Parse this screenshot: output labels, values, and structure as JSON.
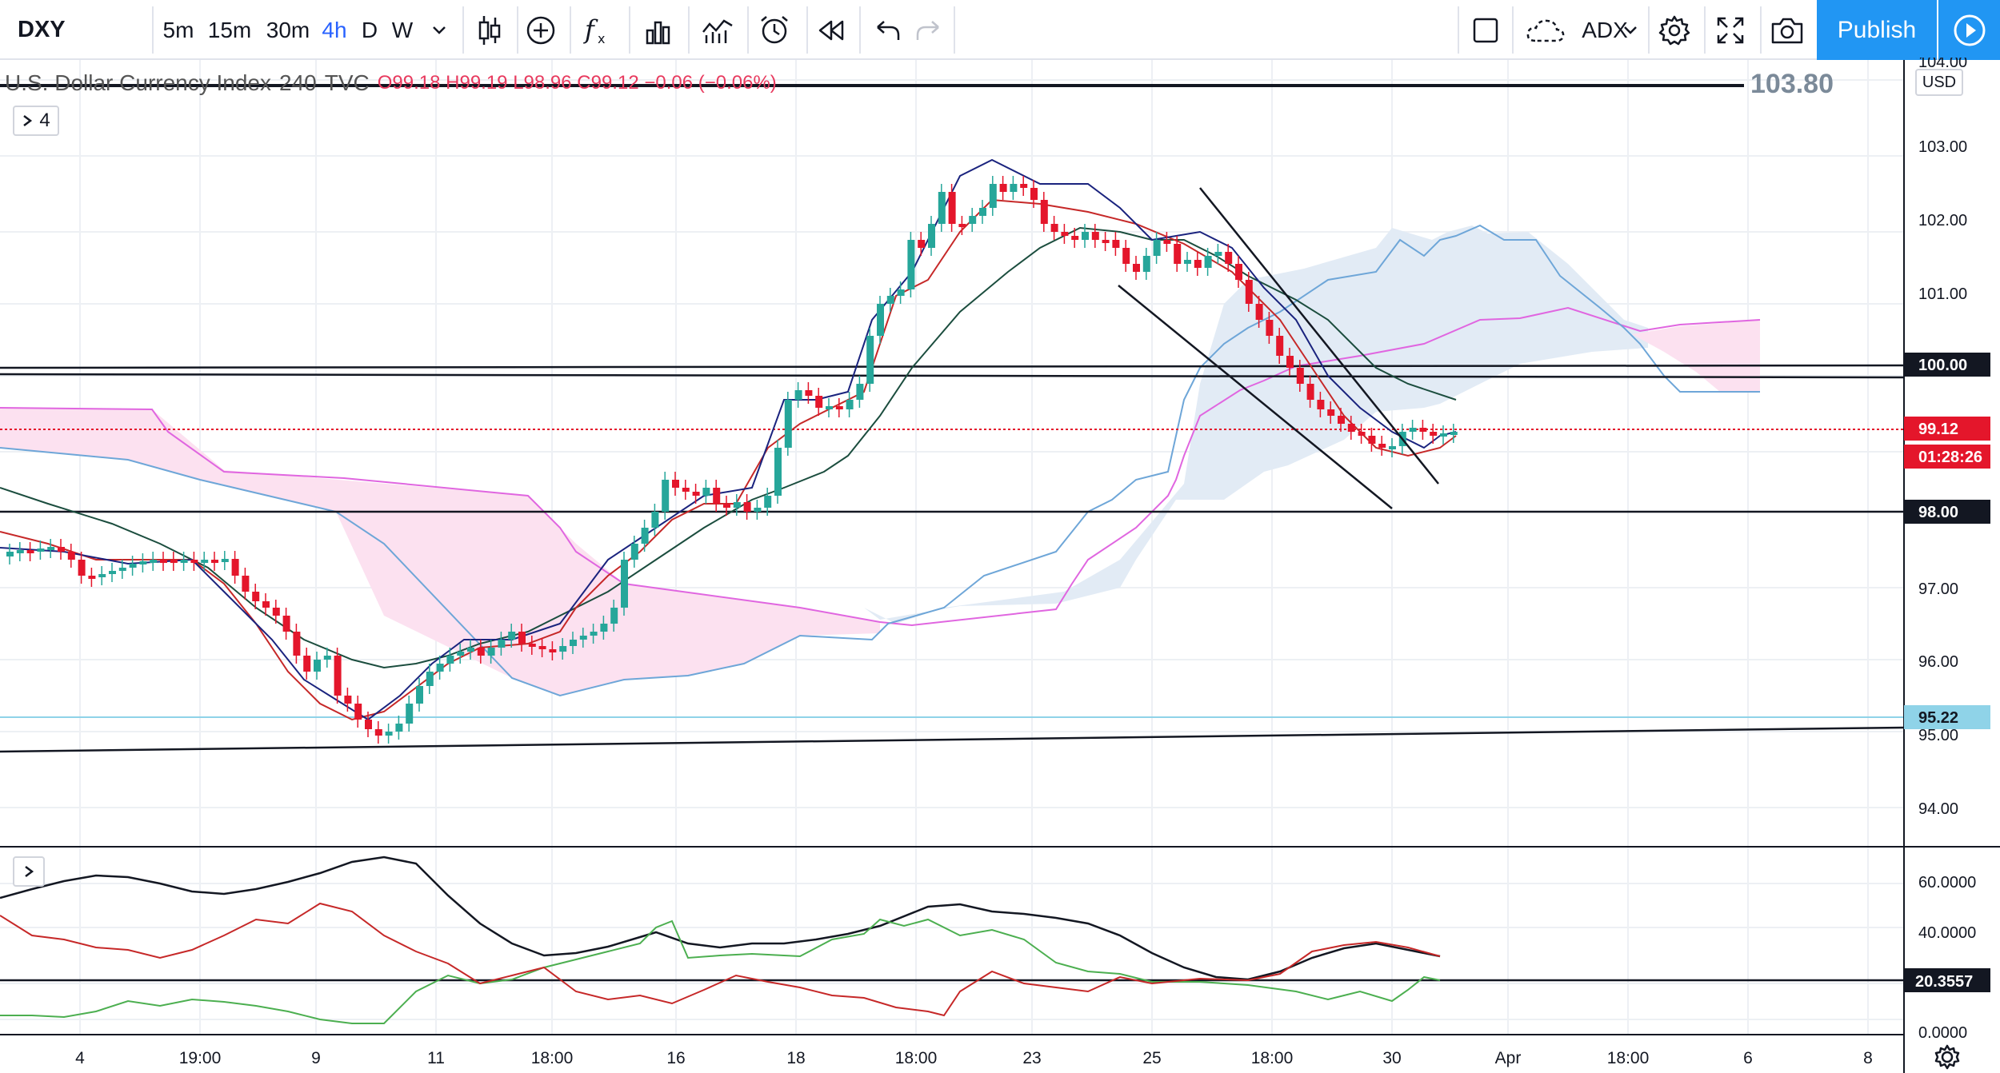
{
  "toolbar": {
    "symbol": "DXY",
    "intervals": [
      "5m",
      "15m",
      "30m",
      "4h",
      "D",
      "W"
    ],
    "active_interval": "4h",
    "indicator_name": "ADX",
    "publish_label": "Publish"
  },
  "legend": {
    "title": "U.S. Dollar Currency Index",
    "interval": "240",
    "source": "TVC",
    "open": "O99.18",
    "high": "H99.19",
    "low": "L98.96",
    "close": "C99.12",
    "change": "−0.06 (−0.06%)",
    "indicators_count": "4"
  },
  "drawn_line_value": "103.80",
  "price_axis": {
    "currency": "USD",
    "top_cut_label": "104.00",
    "ticks": [
      "103.00",
      "102.00",
      "101.00",
      "97.00",
      "96.00",
      "95.00",
      "94.00"
    ],
    "tags": [
      {
        "text": "100.00",
        "bg": "#131722",
        "fg": "#ffffff"
      },
      {
        "text": "99.12",
        "bg": "#e4162b",
        "fg": "#ffffff"
      },
      {
        "text": "01:28:26",
        "bg": "#e4162b",
        "fg": "#ffffff"
      },
      {
        "text": "98.00",
        "bg": "#131722",
        "fg": "#ffffff"
      },
      {
        "text": "95.22",
        "bg": "#8fd3e8",
        "fg": "#131722"
      }
    ]
  },
  "adx_axis": {
    "ticks": [
      "60.0000",
      "40.0000",
      "0.0000"
    ],
    "tag": "20.3557"
  },
  "time_axis": {
    "labels": [
      "4",
      "19:00",
      "9",
      "11",
      "18:00",
      "16",
      "18",
      "18:00",
      "23",
      "25",
      "18:00",
      "30",
      "Apr",
      "18:00",
      "6",
      "8"
    ]
  },
  "colors": {
    "up": "#26a69a",
    "down": "#e4162b",
    "cloud_bull": "#e2ebf5",
    "cloud_bear": "#fce1f0",
    "accent": "#2196f3"
  }
}
